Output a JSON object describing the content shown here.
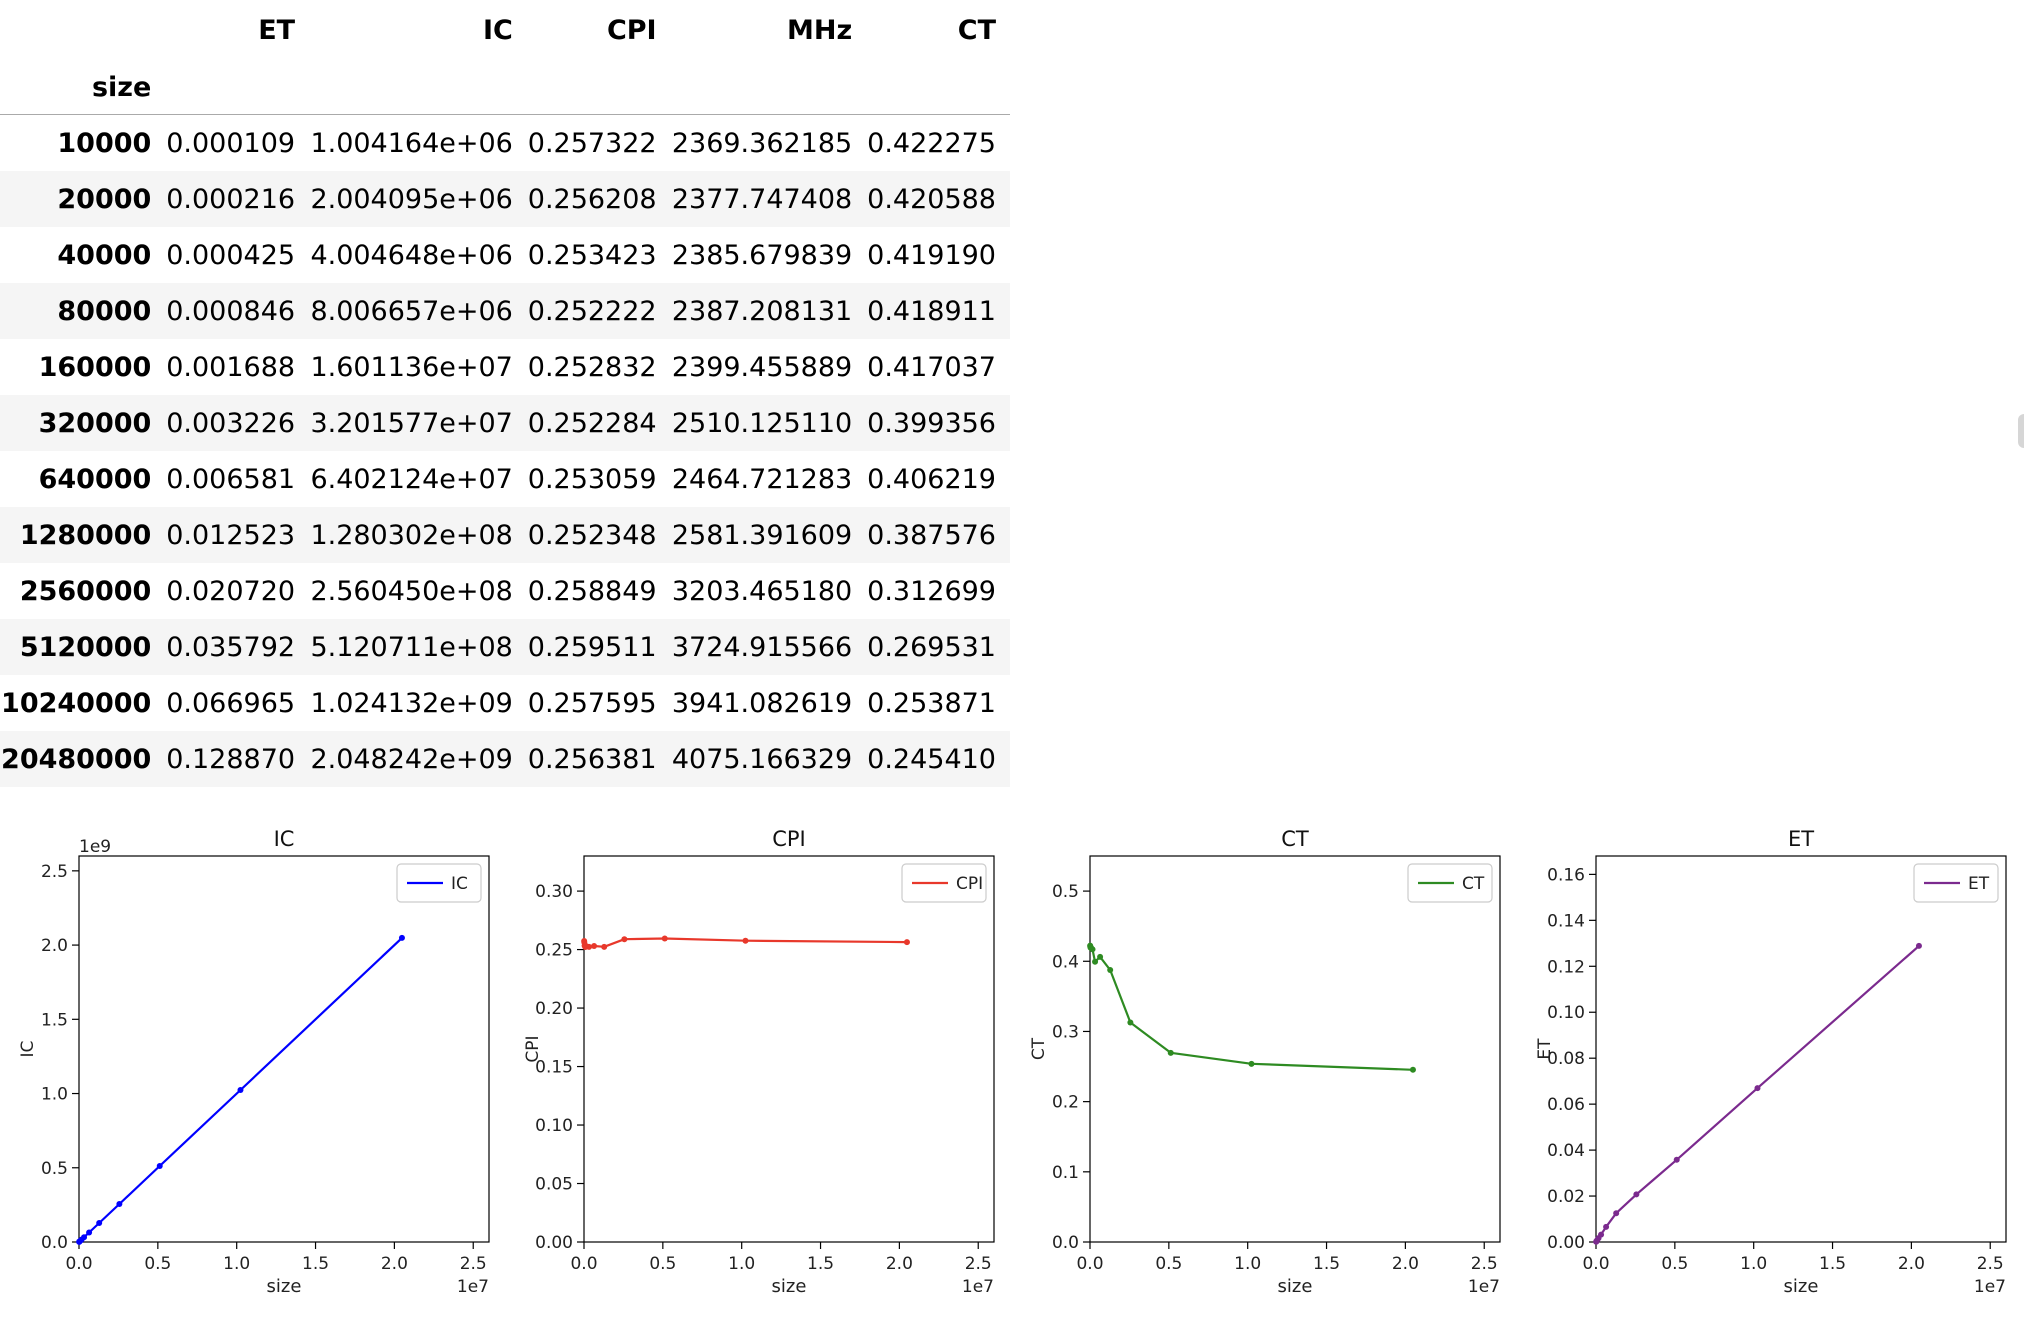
{
  "table": {
    "columns": [
      "ET",
      "IC",
      "CPI",
      "MHz",
      "CT"
    ],
    "index_name": "size",
    "rows": [
      {
        "size": "10000",
        "cells": [
          "0.000109",
          "1.004164e+06",
          "0.257322",
          "2369.362185",
          "0.422275"
        ]
      },
      {
        "size": "20000",
        "cells": [
          "0.000216",
          "2.004095e+06",
          "0.256208",
          "2377.747408",
          "0.420588"
        ]
      },
      {
        "size": "40000",
        "cells": [
          "0.000425",
          "4.004648e+06",
          "0.253423",
          "2385.679839",
          "0.419190"
        ]
      },
      {
        "size": "80000",
        "cells": [
          "0.000846",
          "8.006657e+06",
          "0.252222",
          "2387.208131",
          "0.418911"
        ]
      },
      {
        "size": "160000",
        "cells": [
          "0.001688",
          "1.601136e+07",
          "0.252832",
          "2399.455889",
          "0.417037"
        ]
      },
      {
        "size": "320000",
        "cells": [
          "0.003226",
          "3.201577e+07",
          "0.252284",
          "2510.125110",
          "0.399356"
        ]
      },
      {
        "size": "640000",
        "cells": [
          "0.006581",
          "6.402124e+07",
          "0.253059",
          "2464.721283",
          "0.406219"
        ]
      },
      {
        "size": "1280000",
        "cells": [
          "0.012523",
          "1.280302e+08",
          "0.252348",
          "2581.391609",
          "0.387576"
        ]
      },
      {
        "size": "2560000",
        "cells": [
          "0.020720",
          "2.560450e+08",
          "0.258849",
          "3203.465180",
          "0.312699"
        ]
      },
      {
        "size": "5120000",
        "cells": [
          "0.035792",
          "5.120711e+08",
          "0.259511",
          "3724.915566",
          "0.269531"
        ]
      },
      {
        "size": "10240000",
        "cells": [
          "0.066965",
          "1.024132e+09",
          "0.257595",
          "3941.082619",
          "0.253871"
        ]
      },
      {
        "size": "20480000",
        "cells": [
          "0.128870",
          "2.048242e+09",
          "0.256381",
          "4075.166329",
          "0.245410"
        ]
      }
    ]
  },
  "chart_data": [
    {
      "type": "line",
      "title": "IC",
      "xlabel": "size",
      "ylabel": "IC",
      "color": "#0000ff",
      "legend": "IC",
      "legend_placement": "top-right",
      "x_multiplier": "1e7",
      "y_multiplier": "1e9",
      "xlim": [
        0,
        2.6
      ],
      "ylim": [
        0,
        2.6
      ],
      "xticks": [
        "0.0",
        "0.5",
        "1.0",
        "1.5",
        "2.0",
        "2.5"
      ],
      "yticks": [
        "0.0",
        "0.5",
        "1.0",
        "1.5",
        "2.0",
        "2.5"
      ],
      "x": [
        0.001,
        0.002,
        0.004,
        0.008,
        0.016,
        0.032,
        0.064,
        0.128,
        0.256,
        0.512,
        1.024,
        2.048
      ],
      "y": [
        0.001004,
        0.002004,
        0.004005,
        0.008007,
        0.016011,
        0.032016,
        0.064021,
        0.12803,
        0.256045,
        0.512071,
        1.024132,
        2.048242
      ]
    },
    {
      "type": "line",
      "title": "CPI",
      "xlabel": "size",
      "ylabel": "CPI",
      "color": "#e8382b",
      "legend": "CPI",
      "legend_placement": "top-right",
      "x_multiplier": "1e7",
      "y_multiplier": "",
      "xlim": [
        0,
        2.6
      ],
      "ylim": [
        0,
        0.33
      ],
      "xticks": [
        "0.0",
        "0.5",
        "1.0",
        "1.5",
        "2.0",
        "2.5"
      ],
      "yticks": [
        "0.00",
        "0.05",
        "0.10",
        "0.15",
        "0.20",
        "0.25",
        "0.30"
      ],
      "x": [
        0.001,
        0.002,
        0.004,
        0.008,
        0.016,
        0.032,
        0.064,
        0.128,
        0.256,
        0.512,
        1.024,
        2.048
      ],
      "y": [
        0.257322,
        0.256208,
        0.253423,
        0.252222,
        0.252832,
        0.252284,
        0.253059,
        0.252348,
        0.258849,
        0.259511,
        0.257595,
        0.256381
      ]
    },
    {
      "type": "line",
      "title": "CT",
      "xlabel": "size",
      "ylabel": "CT",
      "color": "#2e8b22",
      "legend": "CT",
      "legend_placement": "top-right",
      "x_multiplier": "1e7",
      "y_multiplier": "",
      "xlim": [
        0,
        2.6
      ],
      "ylim": [
        0,
        0.55
      ],
      "xticks": [
        "0.0",
        "0.5",
        "1.0",
        "1.5",
        "2.0",
        "2.5"
      ],
      "yticks": [
        "0.0",
        "0.1",
        "0.2",
        "0.3",
        "0.4",
        "0.5"
      ],
      "x": [
        0.001,
        0.002,
        0.004,
        0.008,
        0.016,
        0.032,
        0.064,
        0.128,
        0.256,
        0.512,
        1.024,
        2.048
      ],
      "y": [
        0.422275,
        0.420588,
        0.41919,
        0.418911,
        0.417037,
        0.399356,
        0.406219,
        0.387576,
        0.312699,
        0.269531,
        0.253871,
        0.24541
      ]
    },
    {
      "type": "line",
      "title": "ET",
      "xlabel": "size",
      "ylabel": "ET",
      "color": "#7b2a8e",
      "legend": "ET",
      "legend_placement": "top-right",
      "x_multiplier": "1e7",
      "y_multiplier": "",
      "xlim": [
        0,
        2.6
      ],
      "ylim": [
        0,
        0.168
      ],
      "xticks": [
        "0.0",
        "0.5",
        "1.0",
        "1.5",
        "2.0",
        "2.5"
      ],
      "yticks": [
        "0.00",
        "0.02",
        "0.04",
        "0.06",
        "0.08",
        "0.10",
        "0.12",
        "0.14",
        "0.16"
      ],
      "x": [
        0.001,
        0.002,
        0.004,
        0.008,
        0.016,
        0.032,
        0.064,
        0.128,
        0.256,
        0.512,
        1.024,
        2.048
      ],
      "y": [
        0.000109,
        0.000216,
        0.000425,
        0.000846,
        0.001688,
        0.003226,
        0.006581,
        0.012523,
        0.02072,
        0.035792,
        0.066965,
        0.12887
      ]
    }
  ]
}
